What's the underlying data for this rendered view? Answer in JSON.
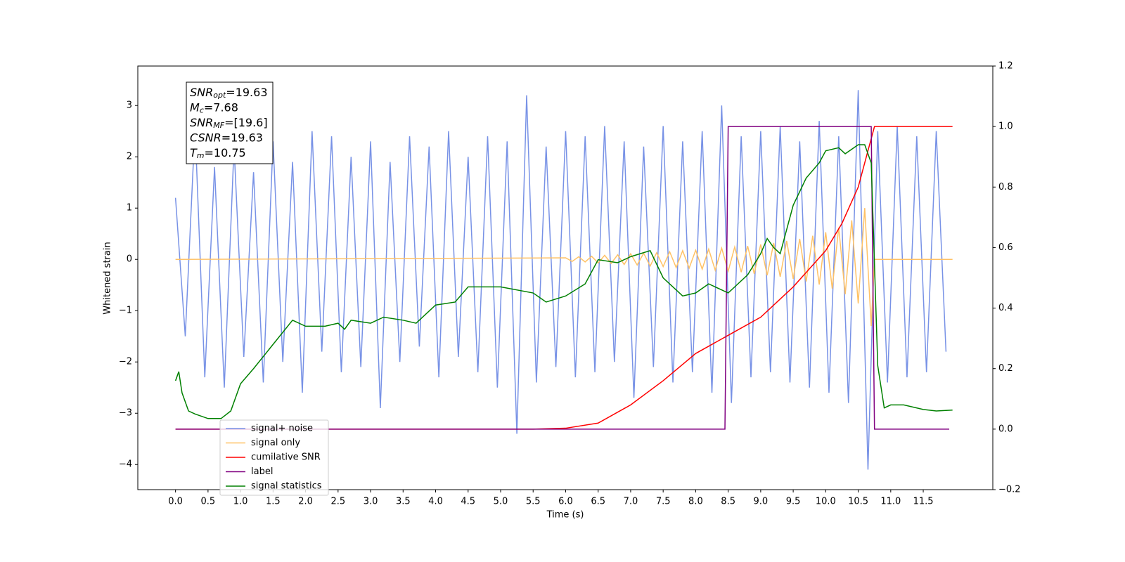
{
  "chart_data": {
    "type": "line",
    "xlabel": "Time (s)",
    "ylabel": "Whitened strain",
    "xlim": [
      -0.58,
      12.57
    ],
    "ylim": [
      -4.49,
      3.77
    ],
    "y2lim": [
      -0.2,
      1.2
    ],
    "xticks": [
      {
        "value": 0,
        "label": "0.0"
      },
      0.5,
      {
        "value": 1,
        "label": "1.0"
      },
      1.5,
      {
        "value": 2,
        "label": "2.0"
      },
      2.5,
      {
        "value": 3,
        "label": "3.0"
      },
      3.5,
      {
        "value": 4,
        "label": "4.0"
      },
      4.5,
      {
        "value": 5,
        "label": "5.0"
      },
      5.5,
      {
        "value": 6,
        "label": "6.0"
      },
      6.5,
      {
        "value": 7,
        "label": "7.0"
      },
      7.5,
      {
        "value": 8,
        "label": "8.0"
      },
      8.5,
      {
        "value": 9,
        "label": "9.0"
      },
      9.5,
      {
        "value": 10,
        "label": "10.0"
      },
      10.5,
      {
        "value": 11,
        "label": "11.0"
      },
      11.5
    ],
    "yticks": [
      {
        "value": -4,
        "label": "−4"
      },
      {
        "value": -3,
        "label": "−3"
      },
      {
        "value": -2,
        "label": "−2"
      },
      {
        "value": -1,
        "label": "−1"
      },
      0,
      1,
      2,
      3
    ],
    "y2ticks": [
      {
        "value": -0.2,
        "label": "−0.2"
      },
      {
        "value": 0,
        "label": "0.0"
      },
      0.2,
      0.4,
      0.6,
      0.8,
      {
        "value": 1,
        "label": "1.0"
      },
      1.2
    ],
    "legend": "lower left",
    "annotation": [
      {
        "main": "SNR",
        "sub": "opt",
        "rest": "=19.63"
      },
      {
        "main": "M",
        "sub": "c",
        "rest": "=7.68"
      },
      {
        "main": "SNR",
        "sub": "MF",
        "rest": "=[19.6]"
      },
      {
        "main": "CSNR",
        "rest": "=19.63"
      },
      {
        "main": "T",
        "sub": "m",
        "rest": "=10.75"
      }
    ],
    "series": [
      {
        "name": "signal+ noise",
        "color": "#7892e6",
        "x": [
          0,
          0.15,
          0.3,
          0.45,
          0.6,
          0.75,
          0.9,
          1.05,
          1.2,
          1.35,
          1.5,
          1.65,
          1.8,
          1.95,
          2.1,
          2.25,
          2.4,
          2.55,
          2.7,
          2.85,
          3.0,
          3.15,
          3.3,
          3.45,
          3.6,
          3.75,
          3.9,
          4.05,
          4.2,
          4.35,
          4.5,
          4.65,
          4.8,
          4.95,
          5.1,
          5.25,
          5.4,
          5.55,
          5.7,
          5.85,
          6.0,
          6.15,
          6.3,
          6.45,
          6.6,
          6.75,
          6.9,
          7.05,
          7.2,
          7.35,
          7.5,
          7.65,
          7.8,
          7.95,
          8.1,
          8.25,
          8.4,
          8.55,
          8.7,
          8.85,
          9.0,
          9.15,
          9.3,
          9.45,
          9.6,
          9.75,
          9.9,
          10.05,
          10.2,
          10.35,
          10.5,
          10.65,
          10.8,
          10.95,
          11.1,
          11.25,
          11.4,
          11.55,
          11.7,
          11.85
        ],
        "values": [
          1.2,
          -1.5,
          2.6,
          -2.3,
          1.8,
          -2.5,
          2.2,
          -1.9,
          1.7,
          -2.4,
          2.3,
          -2.0,
          1.9,
          -2.6,
          2.5,
          -1.8,
          2.4,
          -2.2,
          2.0,
          -2.1,
          2.3,
          -2.9,
          1.9,
          -2.0,
          2.4,
          -1.7,
          2.2,
          -2.3,
          2.5,
          -1.9,
          2.0,
          -2.2,
          2.4,
          -2.5,
          2.3,
          -3.4,
          3.2,
          -2.4,
          2.2,
          -2.1,
          2.5,
          -2.3,
          2.4,
          -2.2,
          2.6,
          -2.0,
          2.3,
          -2.7,
          2.2,
          -2.1,
          2.6,
          -2.4,
          2.3,
          -2.2,
          2.5,
          -2.6,
          3.0,
          -2.8,
          2.4,
          -2.3,
          2.5,
          -2.2,
          2.6,
          -2.4,
          2.3,
          -2.5,
          2.7,
          -2.6,
          2.4,
          -2.8,
          3.3,
          -4.1,
          2.5,
          -2.4,
          2.6,
          -2.3,
          2.4,
          -2.2,
          2.5,
          -1.8
        ]
      },
      {
        "name": "signal only",
        "color": "#ffc266",
        "x": [
          0,
          6.0,
          6.1,
          6.2,
          6.3,
          6.4,
          6.5,
          6.6,
          6.7,
          6.8,
          6.9,
          7.0,
          7.1,
          7.2,
          7.3,
          7.4,
          7.5,
          7.6,
          7.7,
          7.8,
          7.9,
          8.0,
          8.1,
          8.2,
          8.3,
          8.4,
          8.5,
          8.6,
          8.7,
          8.8,
          8.9,
          9.0,
          9.1,
          9.2,
          9.3,
          9.4,
          9.5,
          9.6,
          9.7,
          9.8,
          9.9,
          10.0,
          10.1,
          10.2,
          10.3,
          10.4,
          10.5,
          10.6,
          10.7,
          10.75,
          11.95
        ],
        "values": [
          0,
          0.03,
          -0.04,
          0.05,
          -0.05,
          0.06,
          -0.07,
          0.08,
          -0.08,
          0.09,
          -0.1,
          0.11,
          -0.11,
          0.12,
          -0.13,
          0.13,
          -0.14,
          0.15,
          -0.16,
          0.17,
          -0.17,
          0.18,
          -0.19,
          0.2,
          -0.21,
          0.22,
          -0.23,
          0.24,
          -0.25,
          0.26,
          -0.28,
          0.29,
          -0.31,
          0.32,
          -0.34,
          0.36,
          -0.38,
          0.4,
          -0.43,
          0.46,
          -0.49,
          0.53,
          -0.57,
          0.62,
          -0.68,
          0.76,
          -0.86,
          1.0,
          -1.3,
          0,
          0
        ]
      },
      {
        "name": "cumilative SNR",
        "color": "#ff0000",
        "axis": "y2",
        "x": [
          0,
          5.5,
          6.0,
          6.5,
          7.0,
          7.5,
          8.0,
          8.5,
          9.0,
          9.5,
          10.0,
          10.25,
          10.5,
          10.65,
          10.75,
          11.95
        ],
        "values": [
          0,
          0,
          0.003,
          0.02,
          0.08,
          0.16,
          0.25,
          0.31,
          0.37,
          0.47,
          0.59,
          0.68,
          0.8,
          0.92,
          1.0,
          1.0
        ]
      },
      {
        "name": "label",
        "color": "#800080",
        "axis": "y2",
        "x": [
          0,
          8.45,
          8.5,
          10.7,
          10.75,
          11.9
        ],
        "values": [
          0,
          0,
          1,
          1,
          0,
          0
        ]
      },
      {
        "name": "signal statistics",
        "color": "#008000",
        "axis": "y2",
        "x": [
          0,
          0.05,
          0.1,
          0.2,
          0.3,
          0.5,
          0.7,
          0.85,
          1.0,
          1.2,
          1.5,
          1.8,
          2.0,
          2.3,
          2.5,
          2.6,
          2.7,
          3.0,
          3.2,
          3.5,
          3.7,
          4.0,
          4.3,
          4.5,
          5.0,
          5.5,
          5.7,
          6.0,
          6.3,
          6.5,
          6.8,
          7.0,
          7.3,
          7.5,
          7.8,
          8.0,
          8.2,
          8.4,
          8.5,
          8.8,
          9.0,
          9.1,
          9.2,
          9.3,
          9.5,
          9.7,
          9.9,
          10.0,
          10.2,
          10.3,
          10.5,
          10.6,
          10.7,
          10.8,
          10.9,
          11.0,
          11.2,
          11.5,
          11.7,
          11.95
        ],
        "values": [
          0.16,
          0.19,
          0.12,
          0.06,
          0.05,
          0.035,
          0.035,
          0.06,
          0.15,
          0.2,
          0.28,
          0.36,
          0.34,
          0.34,
          0.35,
          0.33,
          0.36,
          0.35,
          0.37,
          0.36,
          0.35,
          0.41,
          0.42,
          0.47,
          0.47,
          0.45,
          0.42,
          0.44,
          0.48,
          0.56,
          0.55,
          0.57,
          0.59,
          0.5,
          0.44,
          0.45,
          0.48,
          0.46,
          0.45,
          0.51,
          0.58,
          0.63,
          0.6,
          0.58,
          0.74,
          0.83,
          0.88,
          0.92,
          0.93,
          0.91,
          0.94,
          0.94,
          0.88,
          0.21,
          0.07,
          0.08,
          0.08,
          0.065,
          0.06,
          0.063
        ]
      }
    ]
  }
}
